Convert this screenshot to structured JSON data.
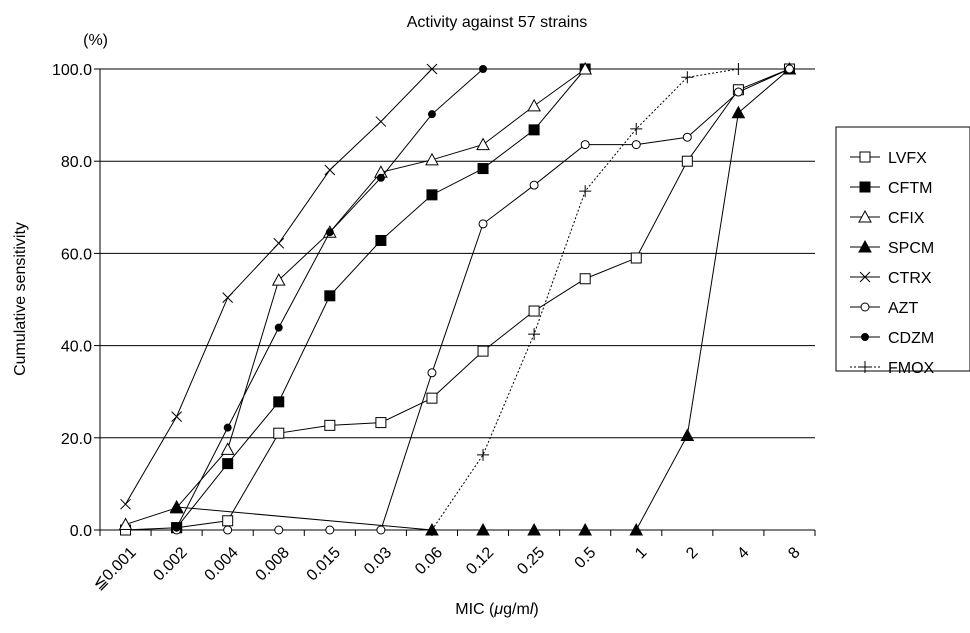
{
  "chart_data": {
    "type": "line",
    "title": "Activity against 57 strains",
    "ylabel": "Cumulative sensitivity",
    "yunit": "(%)",
    "xlabel_prefix": "MIC (",
    "xlabel_mu": "μ",
    "xlabel_unit": "g/m",
    "xlabel_l": "l",
    "xlabel_suffix": ")",
    "categories": [
      "≦0.001",
      "0.002",
      "0.004",
      "0.008",
      "0.015",
      "0.03",
      "0.06",
      "0.12",
      "0.25",
      "0.5",
      "1",
      "2",
      "4",
      "8"
    ],
    "yticks": [
      "0.0",
      "20.0",
      "40.0",
      "60.0",
      "80.0",
      "100.0"
    ],
    "ylim": [
      0,
      100
    ],
    "grid": "horizontal",
    "legend_position": "right",
    "series": [
      {
        "name": "LVFX",
        "marker": "open-square",
        "dashed": false,
        "values": [
          0,
          0.5,
          2,
          21,
          22.7,
          23.3,
          28.6,
          38.8,
          47.5,
          54.5,
          59,
          80,
          95.5,
          100
        ]
      },
      {
        "name": "CFTM",
        "marker": "filled-square",
        "dashed": false,
        "values": [
          null,
          0.5,
          14.4,
          27.8,
          50.8,
          62.8,
          72.7,
          78.4,
          86.8,
          100,
          null,
          null,
          null,
          null
        ]
      },
      {
        "name": "CFIX",
        "marker": "open-triangle",
        "dashed": false,
        "values": [
          1.2,
          4.8,
          17.5,
          54.2,
          64.6,
          77.6,
          80.3,
          83.6,
          92,
          100,
          null,
          null,
          null,
          null
        ]
      },
      {
        "name": "SPCM",
        "marker": "filled-triangle",
        "dashed": false,
        "values": [
          null,
          5,
          null,
          null,
          null,
          null,
          0,
          0,
          0,
          0,
          0,
          20.5,
          90.5,
          100
        ]
      },
      {
        "name": "CTRX",
        "marker": "x",
        "dashed": false,
        "values": [
          5.6,
          24.6,
          50.4,
          62.2,
          78.1,
          88.6,
          100,
          null,
          null,
          null,
          null,
          null,
          null,
          null
        ]
      },
      {
        "name": "AZT",
        "marker": "open-circle",
        "dashed": false,
        "values": [
          null,
          0,
          0,
          0,
          0,
          0,
          34.1,
          66.4,
          74.8,
          83.6,
          83.6,
          85.2,
          95,
          100
        ]
      },
      {
        "name": "CDZM",
        "marker": "filled-circle",
        "dashed": false,
        "values": [
          null,
          0.5,
          22.2,
          43.9,
          64.6,
          76.4,
          90.2,
          100,
          null,
          null,
          null,
          null,
          null,
          null
        ]
      },
      {
        "name": "FMOX",
        "marker": "plus",
        "dashed": true,
        "values": [
          null,
          null,
          null,
          null,
          null,
          null,
          0,
          16.3,
          42.5,
          73.5,
          87,
          98.2,
          100,
          null
        ]
      }
    ]
  }
}
